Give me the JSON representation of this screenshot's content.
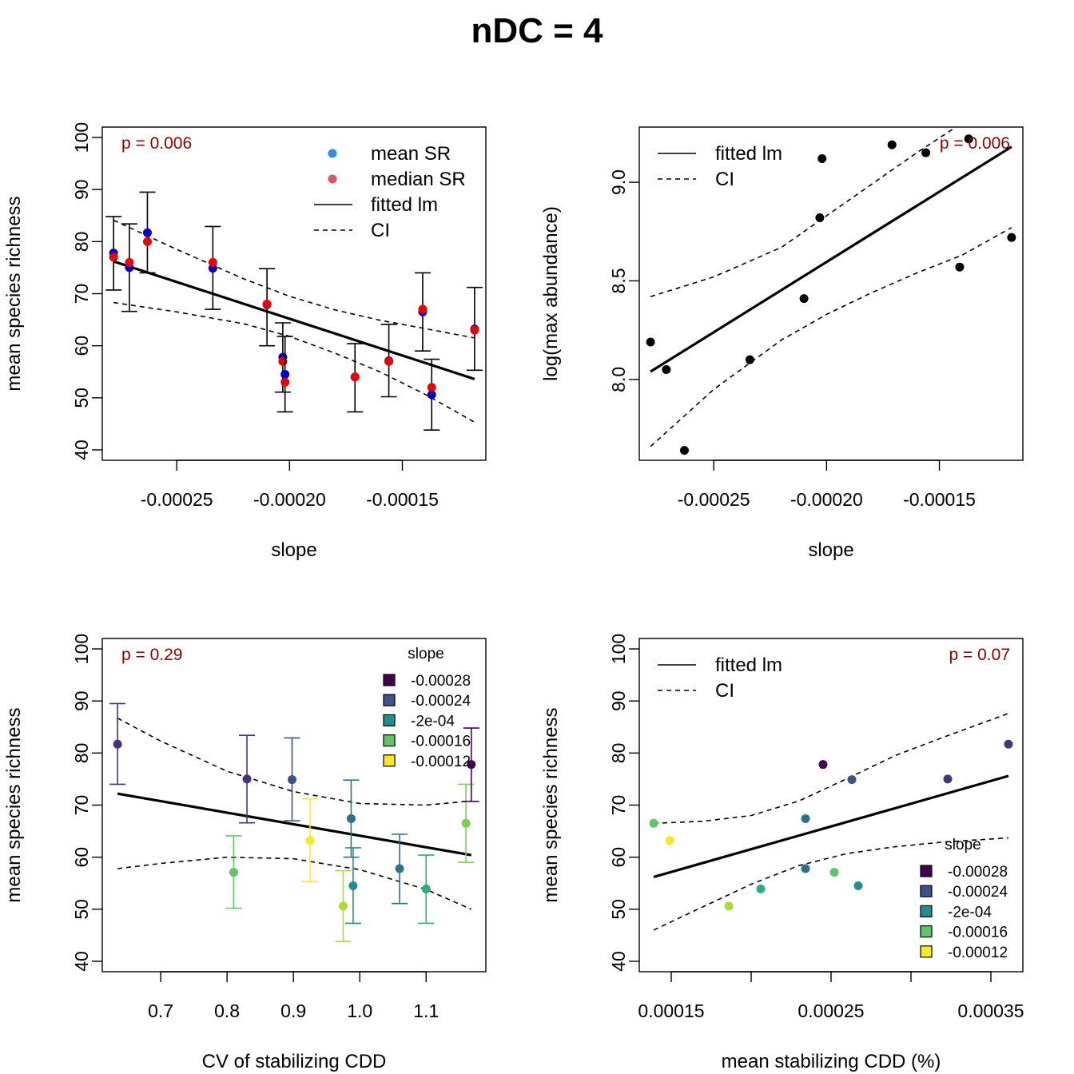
{
  "figure": {
    "title": "nDC = 4"
  },
  "colors": {
    "mean_point": "#0000CC",
    "median_point": "#EE0000",
    "legend_mean": "#2E8FE0",
    "legend_median": "#E05070",
    "pvalue": "#8B0000",
    "slope_palette": [
      "#440154",
      "#3B528B",
      "#21908C",
      "#5DC863",
      "#FDE725"
    ],
    "point_fills": [
      "#440154",
      "#46337E",
      "#3B528B",
      "#2C728E",
      "#21908C",
      "#28AE80",
      "#5DC863",
      "#ADDC30",
      "#FDE725"
    ]
  },
  "chart_data": [
    {
      "type": "scatter",
      "panel": "top-left",
      "xlabel": "slope",
      "ylabel": "mean species richness",
      "xticks": [
        "-0.00025",
        "-0.00020",
        "-0.00015"
      ],
      "yticks": [
        "40",
        "50",
        "60",
        "70",
        "80",
        "90",
        "100"
      ],
      "xlim": [
        -0.000283,
        -0.000113
      ],
      "ylim": [
        38,
        102
      ],
      "p_value": "p = 0.006",
      "legend": {
        "position": "top-right",
        "entries": [
          "mean SR",
          "median SR",
          "fitted lm",
          "CI"
        ]
      },
      "points": [
        {
          "x": -0.000278,
          "mean": 77.8,
          "median": 77.0,
          "lo": 70.7,
          "hi": 84.8
        },
        {
          "x": -0.000271,
          "mean": 75.0,
          "median": 76.0,
          "lo": 66.6,
          "hi": 83.4
        },
        {
          "x": -0.000263,
          "mean": 81.7,
          "median": 80.0,
          "lo": 74.0,
          "hi": 89.5
        },
        {
          "x": -0.000234,
          "mean": 74.9,
          "median": 76.0,
          "lo": 67.0,
          "hi": 82.9
        },
        {
          "x": -0.00021,
          "mean": 67.9,
          "median": 68.0,
          "lo": 60.0,
          "hi": 74.8
        },
        {
          "x": -0.000203,
          "mean": 57.8,
          "median": 57.0,
          "lo": 51.1,
          "hi": 64.4
        },
        {
          "x": -0.000202,
          "mean": 54.5,
          "median": 53.0,
          "lo": 47.3,
          "hi": 61.8
        },
        {
          "x": -0.000171,
          "mean": 54.0,
          "median": 54.0,
          "lo": 47.3,
          "hi": 60.4
        },
        {
          "x": -0.000156,
          "mean": 57.1,
          "median": 57.0,
          "lo": 50.2,
          "hi": 64.1
        },
        {
          "x": -0.000141,
          "mean": 66.5,
          "median": 67.0,
          "lo": 59.0,
          "hi": 74.0
        },
        {
          "x": -0.000137,
          "mean": 50.6,
          "median": 52.0,
          "lo": 43.8,
          "hi": 57.4
        },
        {
          "x": -0.000118,
          "mean": 63.2,
          "median": 63.0,
          "lo": 55.3,
          "hi": 71.2
        }
      ],
      "fit": {
        "x": [
          -0.000278,
          -0.000118
        ],
        "y": [
          76.2,
          53.6
        ]
      },
      "ci_lower": {
        "x": [
          -0.000278,
          -0.00025,
          -0.00022,
          -0.0002,
          -0.00018,
          -0.00016,
          -0.00014,
          -0.000118
        ],
        "y": [
          68.3,
          66.5,
          64.2,
          61.8,
          58.6,
          55.0,
          50.7,
          45.3
        ]
      },
      "ci_upper": {
        "x": [
          -0.000278,
          -0.00025,
          -0.00022,
          -0.0002,
          -0.00018,
          -0.00016,
          -0.00014,
          -0.000118
        ],
        "y": [
          84.1,
          78.5,
          72.8,
          69.5,
          66.9,
          64.9,
          63.3,
          61.5
        ]
      }
    },
    {
      "type": "scatter",
      "panel": "top-right",
      "xlabel": "slope",
      "ylabel": "log(max abundance)",
      "xticks": [
        "-0.00025",
        "-0.00020",
        "-0.00015"
      ],
      "yticks": [
        "8.0",
        "8.5",
        "9.0"
      ],
      "xlim": [
        -0.000283,
        -0.000113
      ],
      "ylim": [
        7.59,
        9.28
      ],
      "p_value": "p = 0.006",
      "legend": {
        "position": "top-left",
        "entries": [
          "fitted lm",
          "CI"
        ]
      },
      "points": [
        {
          "x": -0.000278,
          "y": 8.19
        },
        {
          "x": -0.000271,
          "y": 8.05
        },
        {
          "x": -0.000263,
          "y": 7.64
        },
        {
          "x": -0.000234,
          "y": 8.1
        },
        {
          "x": -0.00021,
          "y": 8.41
        },
        {
          "x": -0.000203,
          "y": 8.82
        },
        {
          "x": -0.000202,
          "y": 9.12
        },
        {
          "x": -0.000171,
          "y": 9.19
        },
        {
          "x": -0.000156,
          "y": 9.15
        },
        {
          "x": -0.000141,
          "y": 8.57
        },
        {
          "x": -0.000137,
          "y": 9.22
        },
        {
          "x": -0.000118,
          "y": 8.72
        }
      ],
      "fit": {
        "x": [
          -0.000278,
          -0.000118
        ],
        "y": [
          8.04,
          9.18
        ]
      },
      "ci_lower": {
        "x": [
          -0.000278,
          -0.00025,
          -0.00022,
          -0.0002,
          -0.00018,
          -0.00016,
          -0.00014,
          -0.000118
        ],
        "y": [
          7.66,
          7.95,
          8.2,
          8.33,
          8.44,
          8.54,
          8.63,
          8.77
        ]
      },
      "ci_upper": {
        "x": [
          -0.000278,
          -0.00025,
          -0.00022,
          -0.0002,
          -0.00018,
          -0.00016,
          -0.00014,
          -0.000118
        ],
        "y": [
          8.42,
          8.52,
          8.67,
          8.83,
          8.99,
          9.15,
          9.3,
          9.4
        ]
      }
    },
    {
      "type": "scatter",
      "panel": "bottom-left",
      "xlabel": "CV of stabilizing CDD",
      "ylabel": "mean species richness",
      "xticks": [
        "0.7",
        "0.8",
        "0.9",
        "1.0",
        "1.1"
      ],
      "yticks": [
        "40",
        "50",
        "60",
        "70",
        "80",
        "90",
        "100"
      ],
      "xlim": [
        0.612,
        1.19
      ],
      "ylim": [
        38,
        102
      ],
      "p_value": "p = 0.29",
      "legend": {
        "position": "top-right",
        "title": "slope",
        "entries": [
          "-0.00028",
          "-0.00024",
          "-2e-04",
          "-0.00016",
          "-0.00012"
        ]
      },
      "points": [
        {
          "x": 0.635,
          "y": 81.7,
          "lo": 74.0,
          "hi": 89.5,
          "color": "#46337E"
        },
        {
          "x": 0.83,
          "y": 75.0,
          "lo": 66.6,
          "hi": 83.4,
          "color": "#46337E"
        },
        {
          "x": 0.898,
          "y": 74.9,
          "lo": 67.0,
          "hi": 82.9,
          "color": "#3B528B"
        },
        {
          "x": 0.987,
          "y": 67.4,
          "lo": 60.0,
          "hi": 74.8,
          "color": "#2C728E"
        },
        {
          "x": 0.99,
          "y": 54.5,
          "lo": 47.3,
          "hi": 61.8,
          "color": "#21908C"
        },
        {
          "x": 1.06,
          "y": 57.8,
          "lo": 51.1,
          "hi": 64.4,
          "color": "#2C728E"
        },
        {
          "x": 1.1,
          "y": 53.9,
          "lo": 47.3,
          "hi": 60.4,
          "color": "#28AE80"
        },
        {
          "x": 0.81,
          "y": 57.1,
          "lo": 50.2,
          "hi": 64.1,
          "color": "#5DC863"
        },
        {
          "x": 1.16,
          "y": 66.5,
          "lo": 59.0,
          "hi": 74.0,
          "color": "#7AD151"
        },
        {
          "x": 0.975,
          "y": 50.6,
          "lo": 43.8,
          "hi": 57.4,
          "color": "#ADDC30"
        },
        {
          "x": 0.925,
          "y": 63.2,
          "lo": 55.3,
          "hi": 71.2,
          "color": "#FDE725"
        },
        {
          "x": 1.168,
          "y": 77.8,
          "lo": 70.7,
          "hi": 84.8,
          "color": "#440154"
        }
      ],
      "fit": {
        "x": [
          0.635,
          1.168
        ],
        "y": [
          72.2,
          60.4
        ]
      },
      "ci_lower": {
        "x": [
          0.635,
          0.7,
          0.8,
          0.9,
          1.0,
          1.1,
          1.168
        ],
        "y": [
          57.8,
          58.8,
          60.0,
          59.7,
          57.6,
          53.8,
          50.0
        ]
      },
      "ci_upper": {
        "x": [
          0.635,
          0.7,
          0.8,
          0.9,
          1.0,
          1.1,
          1.168
        ],
        "y": [
          86.7,
          82.3,
          76.5,
          72.6,
          70.3,
          70.0,
          70.8
        ]
      }
    },
    {
      "type": "scatter",
      "panel": "bottom-right",
      "xlabel": "mean stabilizing CDD (%)",
      "ylabel": "mean species richness",
      "xticks": [
        "0.00015",
        "0.00025",
        "0.00035"
      ],
      "yticks": [
        "40",
        "50",
        "60",
        "70",
        "80",
        "90",
        "100"
      ],
      "xlim": [
        0.00013,
        0.00037
      ],
      "ylim": [
        38,
        102
      ],
      "p_value": "p = 0.07",
      "legend": {
        "position": "right",
        "title": "slope",
        "entries": [
          "-0.00028",
          "-0.00024",
          "-2e-04",
          "-0.00016",
          "-0.00012"
        ],
        "line_entries": [
          "fitted lm",
          "CI"
        ]
      },
      "points": [
        {
          "x": 0.000139,
          "y": 66.5,
          "color": "#5DC863"
        },
        {
          "x": 0.000149,
          "y": 63.2,
          "color": "#FDE725"
        },
        {
          "x": 0.000186,
          "y": 50.6,
          "color": "#ADDC30"
        },
        {
          "x": 0.000206,
          "y": 53.9,
          "color": "#28AE80"
        },
        {
          "x": 0.000234,
          "y": 67.4,
          "color": "#2C728E"
        },
        {
          "x": 0.000234,
          "y": 57.8,
          "color": "#2C728E"
        },
        {
          "x": 0.000245,
          "y": 77.8,
          "color": "#440154"
        },
        {
          "x": 0.000252,
          "y": 57.1,
          "color": "#5DC863"
        },
        {
          "x": 0.000263,
          "y": 74.9,
          "color": "#3B528B"
        },
        {
          "x": 0.000267,
          "y": 54.5,
          "color": "#21908C"
        },
        {
          "x": 0.000323,
          "y": 75.0,
          "color": "#46337E"
        },
        {
          "x": 0.000361,
          "y": 81.7,
          "color": "#46337E"
        }
      ],
      "fit": {
        "x": [
          0.000139,
          0.000361
        ],
        "y": [
          56.2,
          75.6
        ]
      },
      "ci_lower": {
        "x": [
          0.000139,
          0.00017,
          0.0002,
          0.00023,
          0.00026,
          0.00029,
          0.00032,
          0.000361
        ],
        "y": [
          46.0,
          50.5,
          54.8,
          58.4,
          60.7,
          62.0,
          62.9,
          63.7
        ]
      },
      "ci_upper": {
        "x": [
          0.000139,
          0.00017,
          0.0002,
          0.00023,
          0.00026,
          0.00029,
          0.00032,
          0.000361
        ],
        "y": [
          66.5,
          66.9,
          68.0,
          70.8,
          75.1,
          79.5,
          83.0,
          87.6
        ]
      }
    }
  ]
}
